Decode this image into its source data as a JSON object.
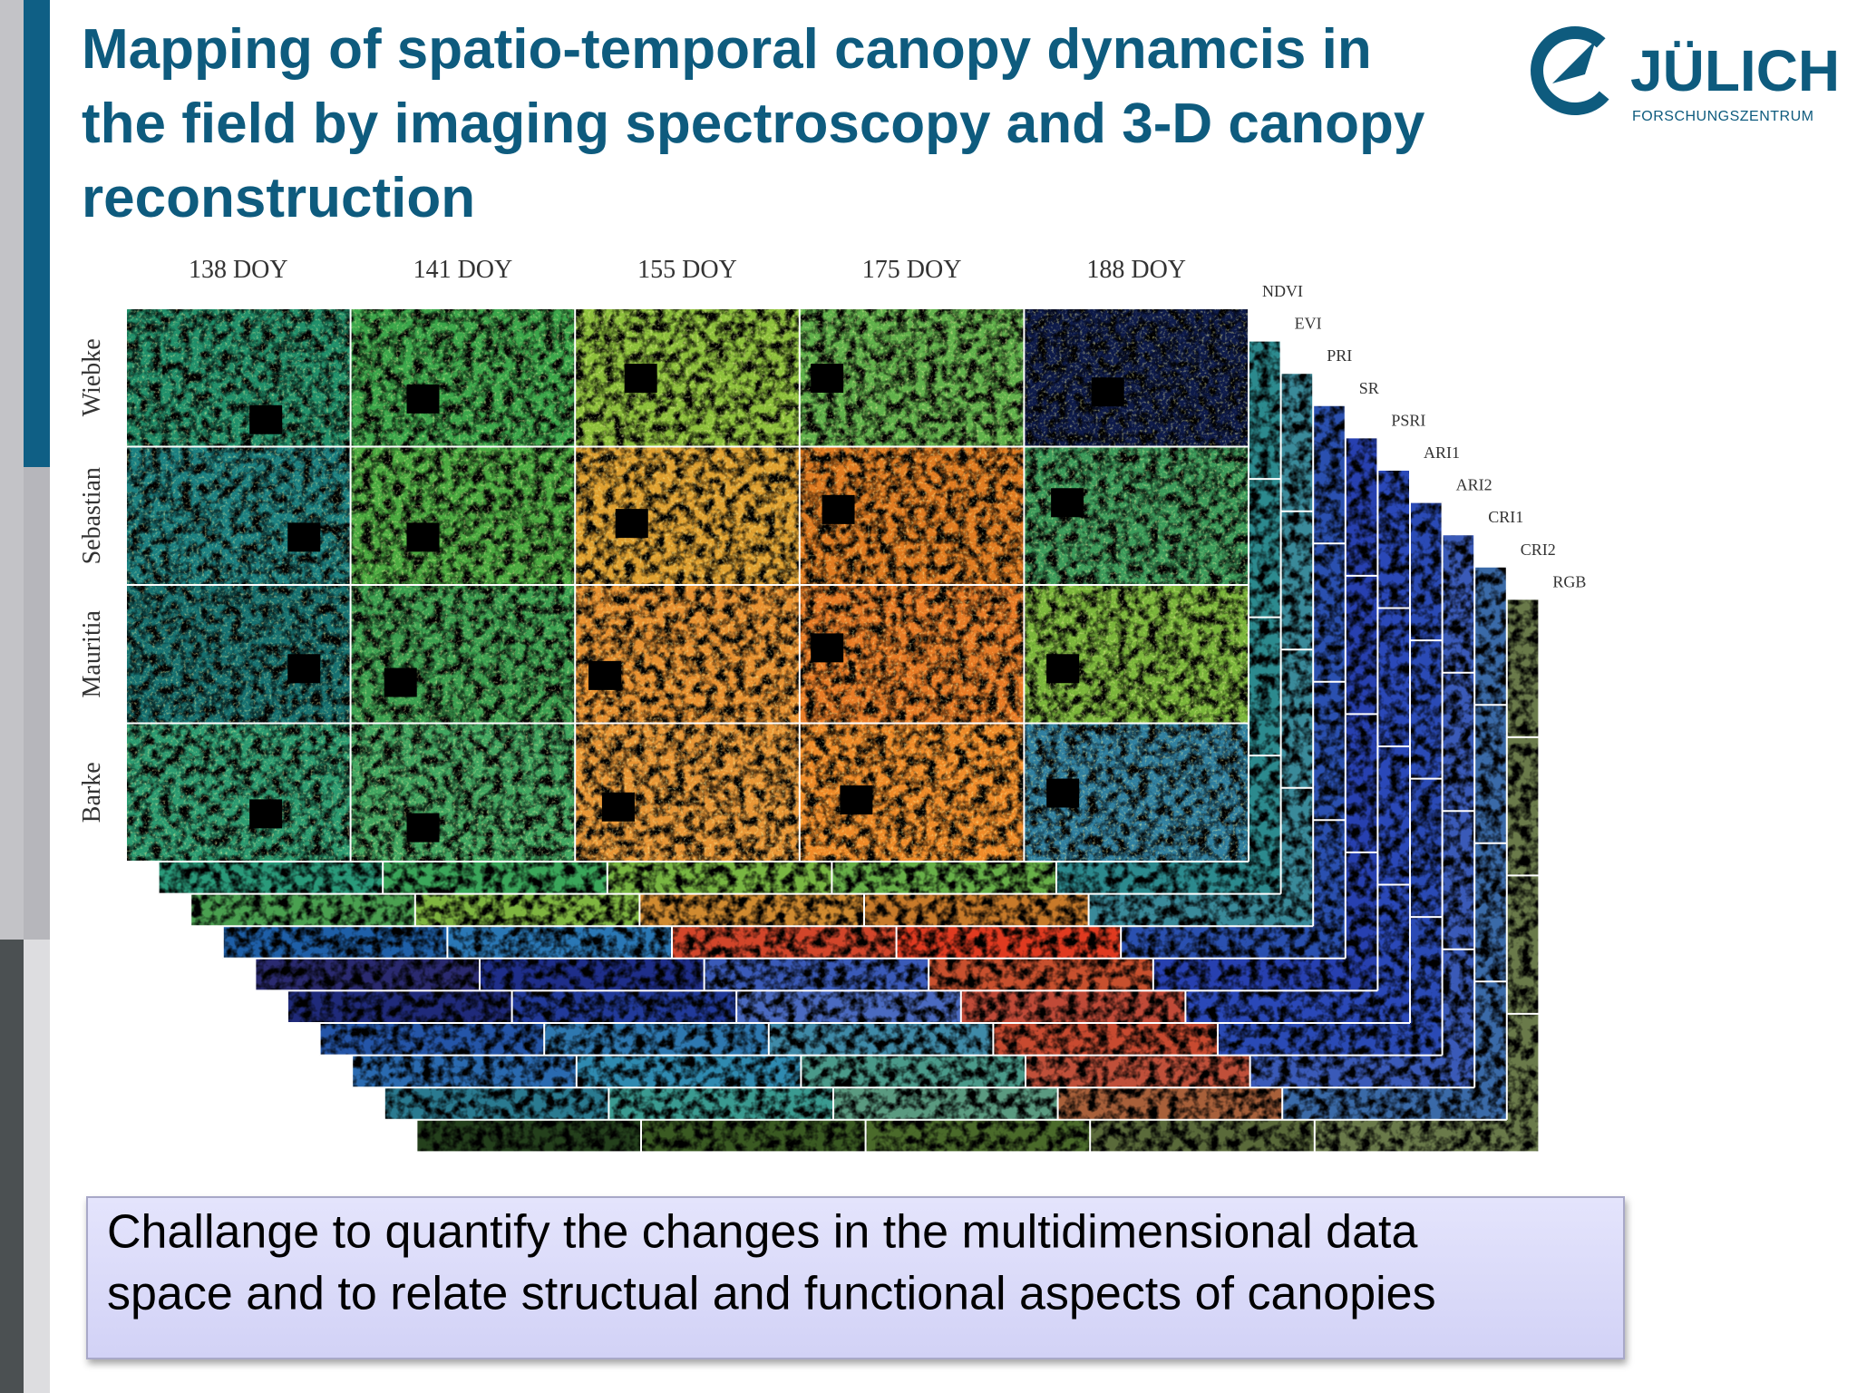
{
  "title": [
    "Mapping of spatio-temporal canopy dynamcis in",
    "the field by imaging spectroscopy and 3-D canopy",
    "reconstruction"
  ],
  "logo": {
    "name": "JÜLICH",
    "subtitle": "FORSCHUNGSZENTRUM"
  },
  "figure": {
    "columns": [
      "138 DOY",
      "141 DOY",
      "155 DOY",
      "175 DOY",
      "188 DOY"
    ],
    "rows": [
      "Wiebke",
      "Sebastian",
      "Mauritia",
      "Barke"
    ],
    "layers": [
      "NDVI",
      "EVI",
      "PRI",
      "SR",
      "PSRI",
      "ARI1",
      "ARI2",
      "CRI1",
      "CRI2",
      "RGB"
    ]
  },
  "callout": [
    "Challange to quantify the changes in the multidimensional data",
    "space and to relate structual and functional aspects of canopies"
  ]
}
